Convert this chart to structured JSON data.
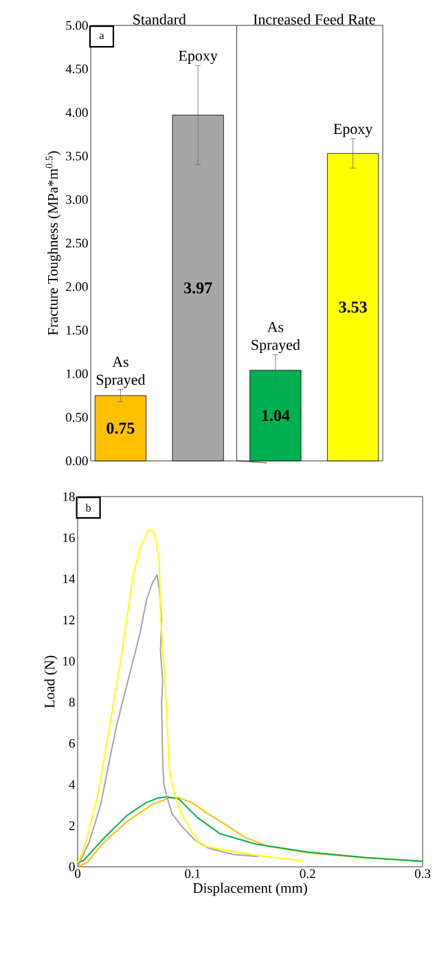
{
  "chart_data": [
    {
      "type": "bar",
      "ylabel": "Fracture Toughness (MPa*m$^{0.5}$)",
      "categories": [
        null,
        null,
        null,
        null
      ],
      "values": [
        0.75,
        3.97,
        1.04,
        3.53
      ],
      "errors": [
        0.07,
        0.57,
        0.18,
        0.17
      ],
      "colors": [
        "#ffc000",
        "#a6a6a6",
        "#00b050",
        "#ffff00"
      ],
      "data_labels": true,
      "ylim": [
        0,
        5
      ],
      "yticks": [
        {
          "value": 0,
          "label": "0.00"
        },
        {
          "value": 0.5,
          "label": "0.50"
        },
        {
          "value": 1,
          "label": "1.00"
        },
        {
          "value": 1.5,
          "label": "1.50"
        },
        {
          "value": 2,
          "label": "2.00"
        },
        {
          "value": 2.5,
          "label": "2.50"
        },
        {
          "value": 3,
          "label": "3.00"
        },
        {
          "value": 3.5,
          "label": "3.50"
        },
        {
          "value": 4,
          "label": "4.00"
        },
        {
          "value": 4.5,
          "label": "4.50"
        },
        {
          "value": 5,
          "label": "5.00"
        }
      ],
      "tick_labels": "y",
      "annotations": [
        "a",
        "Standard",
        "Increased Feed Rate",
        "As Sprayed",
        "Epoxy",
        "As Sprayed",
        "Epoxy"
      ]
    },
    {
      "type": "line",
      "xlabel": "Displacement (mm)",
      "ylabel": "Load (N)",
      "series": [
        {
          "color": "#ffc000",
          "x": [
            0,
            0.008,
            0.023,
            0.043,
            0.064,
            0.08,
            0.088,
            0.1,
            0.114,
            0.13,
            0.145,
            0.165,
            0.2,
            0.25,
            0.3
          ],
          "values": [
            0,
            0.2,
            1.2,
            2.2,
            3.0,
            3.36,
            3.36,
            3.1,
            2.55,
            2.0,
            1.45,
            1.0,
            0.68,
            0.43,
            0.26
          ]
        },
        {
          "color": "#00b050",
          "x": [
            0,
            0.005,
            0.023,
            0.043,
            0.059,
            0.07,
            0.078,
            0.088,
            0.095,
            0.104,
            0.124,
            0.155,
            0.2,
            0.25,
            0.3
          ],
          "values": [
            0.2,
            0.3,
            1.4,
            2.5,
            3.1,
            3.35,
            3.4,
            3.3,
            2.9,
            2.4,
            1.6,
            1.1,
            0.72,
            0.45,
            0.27
          ]
        },
        {
          "color": "#a6a6a6",
          "x": [
            0,
            0.01,
            0.02,
            0.027,
            0.034,
            0.044,
            0.054,
            0.06,
            0.065,
            0.069,
            0.071,
            0.073,
            0.072,
            0.074,
            0.073,
            0.074,
            0.075,
            0.0776,
            0.082,
            0.09,
            0.102,
            0.114,
            0.135,
            0.157
          ],
          "values": [
            0,
            1.2,
            3,
            5,
            6.9,
            9.1,
            11.3,
            13,
            13.8,
            14.2,
            13.5,
            12,
            10.5,
            9,
            8,
            5,
            4,
            3.4,
            2.6,
            2,
            1.3,
            0.9,
            0.6,
            0.5
          ]
        },
        {
          "color": "#ffff00",
          "x": [
            0,
            0.005,
            0.01,
            0.018,
            0.028,
            0.038,
            0.048,
            0.055,
            0.062,
            0.066,
            0.068,
            0.071,
            0.072,
            0.074,
            0.076,
            0.078,
            0.079,
            0.08,
            0.083,
            0.086,
            0.09,
            0.095,
            0.1,
            0.103,
            0.104,
            0.11,
            0.13,
            0.15,
            0.17,
            0.195
          ],
          "values": [
            0.2,
            0.8,
            1.8,
            3.6,
            6.9,
            10.2,
            14.1,
            15.6,
            16.4,
            16.3,
            15.9,
            14.8,
            12.4,
            10.5,
            9.1,
            6.9,
            5.5,
            4.6,
            3.8,
            3.3,
            2.6,
            2.1,
            1.6,
            1.5,
            1.2,
            1.0,
            0.8,
            0.6,
            0.45,
            0.3
          ]
        }
      ],
      "xlim": [
        0,
        0.3
      ],
      "xticks": [
        0,
        0.1,
        0.2,
        0.3
      ],
      "ylim": [
        0,
        18
      ],
      "yticks": [
        0,
        2,
        4,
        6,
        8,
        10,
        12,
        14,
        16,
        18
      ],
      "annotations": [
        "b"
      ]
    }
  ]
}
